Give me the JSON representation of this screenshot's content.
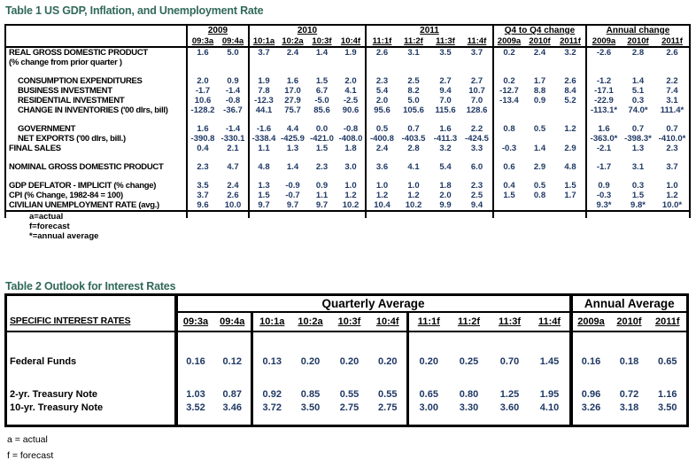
{
  "colors": {
    "title": "#31695A",
    "value": "#1F3864",
    "line": "#000000"
  },
  "table1": {
    "title": "Table 1 US GDP, Inflation, and Unemployment Rate",
    "col_groups": [
      {
        "label": "2009",
        "cols": [
          "09:3a",
          "09:4a"
        ]
      },
      {
        "label": "2010",
        "cols": [
          "10:1a",
          "10:2a",
          "10:3f",
          "10:4f"
        ]
      },
      {
        "label": "2011",
        "cols": [
          "11:1f",
          "11:2f",
          "11:3f",
          "11:4f"
        ]
      },
      {
        "label": "Q4 to Q4 change",
        "cols": [
          "2009a",
          "2010f",
          "2011f"
        ]
      },
      {
        "label": "Annual change",
        "cols": [
          "2009a",
          "2010f",
          "2011f"
        ]
      }
    ],
    "rows": [
      {
        "label": "REAL GROSS DOMESTIC PRODUCT",
        "label2": "(% change from prior quarter )",
        "indent": false,
        "values": [
          "1.6",
          "5.0",
          "3.7",
          "2.4",
          "1.4",
          "1.9",
          "2.6",
          "3.1",
          "3.5",
          "3.7",
          "0.2",
          "2.4",
          "3.2",
          "-2.6",
          "2.8",
          "2.6"
        ]
      },
      {
        "spacer": true
      },
      {
        "label": "CONSUMPTION EXPENDITURES",
        "indent": true,
        "values": [
          "2.0",
          "0.9",
          "1.9",
          "1.6",
          "1.5",
          "2.0",
          "2.3",
          "2.5",
          "2.7",
          "2.7",
          "0.2",
          "1.7",
          "2.6",
          "-1.2",
          "1.4",
          "2.2"
        ]
      },
      {
        "label": "BUSINESS INVESTMENT",
        "indent": true,
        "values": [
          "-1.7",
          "-1.4",
          "7.8",
          "17.0",
          "6.7",
          "4.1",
          "5.4",
          "8.2",
          "9.4",
          "10.7",
          "-12.7",
          "8.8",
          "8.4",
          "-17.1",
          "5.1",
          "7.4"
        ]
      },
      {
        "label": "RESIDENTIAL INVESTMENT",
        "indent": true,
        "values": [
          "10.6",
          "-0.8",
          "-12.3",
          "27.9",
          "-5.0",
          "-2.5",
          "2.0",
          "5.0",
          "7.0",
          "7.0",
          "-13.4",
          "0.9",
          "5.2",
          "-22.9",
          "0.3",
          "3.1"
        ]
      },
      {
        "label": "CHANGE IN INVENTORIES ('00 dlrs, bill)",
        "indent": true,
        "values": [
          "-128.2",
          "-36.7",
          "44.1",
          "75.7",
          "85.6",
          "90.6",
          "95.6",
          "105.6",
          "115.6",
          "128.6",
          "",
          "",
          "",
          "-113.1*",
          "74.0*",
          "111.4*"
        ]
      },
      {
        "spacer": true
      },
      {
        "label": "GOVERNMENT",
        "indent": true,
        "values": [
          "1.6",
          "-1.4",
          "-1.6",
          "4.4",
          "0.0",
          "-0.8",
          "0.5",
          "0.7",
          "1.6",
          "2.2",
          "0.8",
          "0.5",
          "1.2",
          "1.6",
          "0.7",
          "0.7"
        ]
      },
      {
        "label": "NET EXPORTS ('00 dlrs, bill.)",
        "indent": true,
        "values": [
          "-390.8",
          "-330.1",
          "-338.4",
          "-425.9",
          "-421.0",
          "-408.0",
          "-400.8",
          "-403.5",
          "-411.3",
          "-424.5",
          "",
          "",
          "",
          "-363.0*",
          "-398.3*",
          "-410.0*"
        ]
      },
      {
        "label": "FINAL SALES",
        "indent": false,
        "values": [
          "0.4",
          "2.1",
          "1.1",
          "1.3",
          "1.5",
          "1.8",
          "2.4",
          "2.8",
          "3.2",
          "3.3",
          "-0.3",
          "1.4",
          "2.9",
          "-2.1",
          "1.3",
          "2.3"
        ]
      },
      {
        "spacer": true
      },
      {
        "label": "NOMINAL GROSS DOMESTIC PRODUCT",
        "indent": false,
        "values": [
          "2.3",
          "4.7",
          "4.8",
          "1.4",
          "2.3",
          "3.0",
          "3.6",
          "4.1",
          "5.4",
          "6.0",
          "0.6",
          "2.9",
          "4.8",
          "-1.7",
          "3.1",
          "3.7"
        ]
      },
      {
        "spacer": true
      },
      {
        "label": "GDP DEFLATOR - IMPLICIT (% change)",
        "indent": false,
        "values": [
          "3.5",
          "2.4",
          "1.3",
          "-0.9",
          "0.9",
          "1.0",
          "1.0",
          "1.0",
          "1.8",
          "2.3",
          "0.4",
          "0.5",
          "1.5",
          "0.9",
          "0.3",
          "1.0"
        ]
      },
      {
        "label": "CPI (% Change, 1982-84 = 100)",
        "indent": false,
        "values": [
          "3.7",
          "2.6",
          "1.5",
          "-0.7",
          "1.1",
          "1.2",
          "1.2",
          "1.2",
          "2.0",
          "2.5",
          "1.5",
          "0.8",
          "1.7",
          "-0.3",
          "1.5",
          "1.2"
        ]
      },
      {
        "label": "CIVILIAN UNEMPLOYMENT RATE (avg.)",
        "indent": false,
        "values": [
          "9.6",
          "10.0",
          "9.7",
          "9.7",
          "9.7",
          "10.2",
          "10.4",
          "10.2",
          "9.9",
          "9.4",
          "",
          "",
          "",
          "9.3*",
          "9.8*",
          "10.0*"
        ]
      }
    ],
    "footnotes": [
      "a=actual",
      "f=forecast",
      "*=annual average"
    ]
  },
  "table2": {
    "title": "Table 2 Outlook for Interest Rates",
    "label_header": "SPECIFIC INTEREST RATES",
    "group_headers": [
      {
        "label": "Quarterly Average"
      },
      {
        "label": "Annual Average"
      }
    ],
    "col_groups": [
      {
        "cols": [
          "09:3a",
          "09:4a"
        ]
      },
      {
        "cols": [
          "10:1a",
          "10:2a",
          "10:3f",
          "10:4f"
        ]
      },
      {
        "cols": [
          "11:1f",
          "11:2f",
          "11:3f",
          "11:4f"
        ]
      },
      {
        "cols": [
          "2009a",
          "2010f",
          "2011f"
        ]
      }
    ],
    "rows": [
      {
        "spacer": true
      },
      {
        "label": "Federal Funds",
        "values": [
          "0.16",
          "0.12",
          "0.13",
          "0.20",
          "0.20",
          "0.20",
          "0.20",
          "0.25",
          "0.70",
          "1.45",
          "0.16",
          "0.18",
          "0.65"
        ]
      },
      {
        "spacer": true
      },
      {
        "label": "2-yr. Treasury Note",
        "values": [
          "1.03",
          "0.87",
          "0.92",
          "0.85",
          "0.55",
          "0.55",
          "0.65",
          "0.80",
          "1.25",
          "1.95",
          "0.96",
          "0.72",
          "1.16"
        ]
      },
      {
        "label": "10-yr. Treasury Note",
        "values": [
          "3.52",
          "3.46",
          "3.72",
          "3.50",
          "2.75",
          "2.75",
          "3.00",
          "3.30",
          "3.60",
          "4.10",
          "3.26",
          "3.18",
          "3.50"
        ]
      },
      {
        "spacer": true
      }
    ],
    "footnotes": [
      "a = actual",
      "f = forecast"
    ]
  }
}
